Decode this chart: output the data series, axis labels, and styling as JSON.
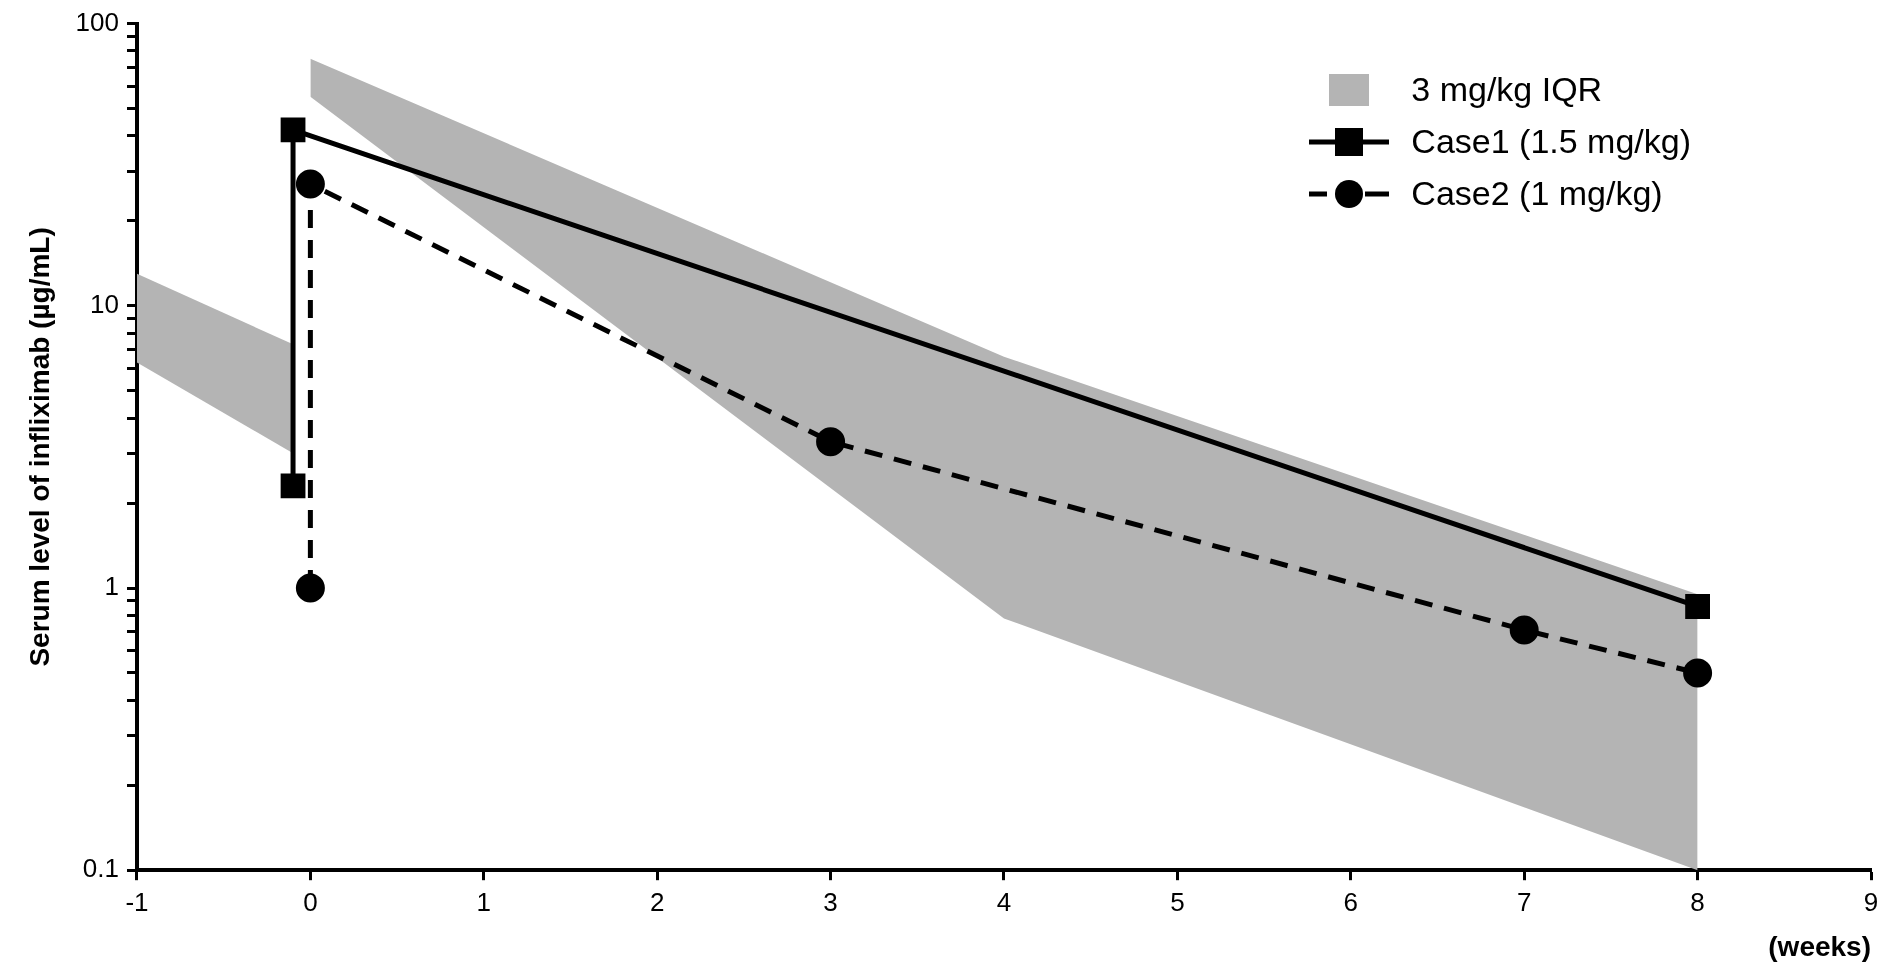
{
  "chart_data": {
    "type": "line",
    "ylabel": "Serum level of infliximab (µg/mL)",
    "xlabel": "(weeks)",
    "xlim": [
      -1,
      9
    ],
    "xticks": [
      -1,
      0,
      1,
      2,
      3,
      4,
      5,
      6,
      7,
      8,
      9
    ],
    "log": "y",
    "ylim": [
      0.1,
      100
    ],
    "yticks": [
      0.1,
      {
        "value": 0.2,
        "label": null
      },
      {
        "value": 0.3,
        "label": null
      },
      {
        "value": 0.4,
        "label": null
      },
      {
        "value": 0.5,
        "label": null
      },
      {
        "value": 0.6,
        "label": null
      },
      {
        "value": 0.7,
        "label": null
      },
      {
        "value": 0.8,
        "label": null
      },
      {
        "value": 0.9,
        "label": null
      },
      1,
      {
        "value": 2,
        "label": null
      },
      {
        "value": 3,
        "label": null
      },
      {
        "value": 4,
        "label": null
      },
      {
        "value": 5,
        "label": null
      },
      {
        "value": 6,
        "label": null
      },
      {
        "value": 7,
        "label": null
      },
      {
        "value": 8,
        "label": null
      },
      {
        "value": 9,
        "label": null
      },
      10,
      {
        "value": 20,
        "label": null
      },
      {
        "value": 30,
        "label": null
      },
      {
        "value": 40,
        "label": null
      },
      {
        "value": 50,
        "label": null
      },
      {
        "value": 60,
        "label": null
      },
      {
        "value": 70,
        "label": null
      },
      {
        "value": 80,
        "label": null
      },
      {
        "value": 90,
        "label": null
      },
      100
    ],
    "legend": "top right",
    "series": [
      {
        "name": "3 mg/kg IQR",
        "type": "area",
        "color": "#b4b4b4",
        "x": [
          -1,
          -0.1
        ],
        "values": [
          null,
          null
        ],
        "lower": [
          6.3,
          3
        ],
        "upper": [
          13,
          7.3
        ]
      },
      {
        "type": "area",
        "color": "#b4b4b4",
        "x": [
          0,
          4,
          8
        ],
        "values": [
          null,
          null,
          null
        ],
        "lower": [
          55,
          0.78,
          0.1
        ],
        "upper": [
          75,
          6.6,
          0.95
        ]
      },
      {
        "name": "Case1 (1.5 mg/kg)",
        "color": "#000000",
        "marker": "square",
        "line_style": "solid",
        "x": [
          -0.1,
          -0.1,
          8
        ],
        "values": [
          2.3,
          42,
          0.86
        ]
      },
      {
        "name": "Case2 (1 mg/kg)",
        "color": "#000000",
        "marker": "circle",
        "line_style": "dashed",
        "x": [
          0,
          0,
          3,
          7,
          8
        ],
        "values": [
          1,
          27,
          3.3,
          0.71,
          0.5
        ]
      }
    ]
  }
}
